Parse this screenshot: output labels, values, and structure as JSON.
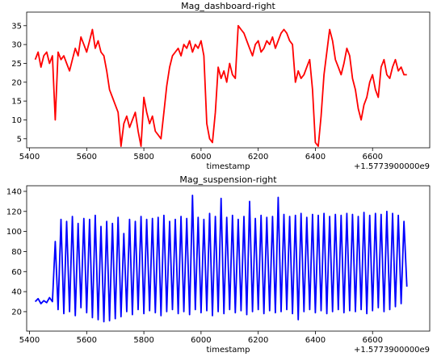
{
  "chart_data": [
    {
      "type": "line",
      "title": "Mag_dashboard-right",
      "xlabel": "timestamp",
      "offset_label": "+1.5773900000e9",
      "xlim": [
        5390,
        6800
      ],
      "xticks": [
        5400,
        5600,
        5800,
        6000,
        6200,
        6400,
        6600
      ],
      "ylim": [
        2.6,
        38.6
      ],
      "yticks": [
        5,
        10,
        15,
        20,
        25,
        30,
        35
      ],
      "x": [
        5420,
        5430,
        5440,
        5450,
        5460,
        5470,
        5480,
        5490,
        5500,
        5510,
        5520,
        5530,
        5540,
        5550,
        5560,
        5570,
        5580,
        5590,
        5600,
        5610,
        5620,
        5630,
        5640,
        5650,
        5660,
        5670,
        5680,
        5690,
        5700,
        5710,
        5720,
        5730,
        5740,
        5750,
        5760,
        5770,
        5780,
        5790,
        5800,
        5810,
        5820,
        5830,
        5840,
        5850,
        5860,
        5870,
        5880,
        5890,
        5900,
        5910,
        5920,
        5930,
        5940,
        5950,
        5960,
        5970,
        5980,
        5990,
        6000,
        6010,
        6020,
        6030,
        6040,
        6050,
        6060,
        6070,
        6080,
        6090,
        6100,
        6110,
        6120,
        6130,
        6140,
        6150,
        6160,
        6170,
        6180,
        6190,
        6200,
        6210,
        6220,
        6230,
        6240,
        6250,
        6260,
        6270,
        6280,
        6290,
        6300,
        6310,
        6320,
        6330,
        6340,
        6350,
        6360,
        6370,
        6380,
        6390,
        6400,
        6410,
        6420,
        6430,
        6440,
        6450,
        6460,
        6470,
        6480,
        6490,
        6500,
        6510,
        6520,
        6530,
        6540,
        6550,
        6560,
        6570,
        6580,
        6590,
        6600,
        6610,
        6620,
        6630,
        6640,
        6650,
        6660,
        6670,
        6680,
        6690,
        6700,
        6710,
        6720
      ],
      "series": [
        {
          "color": "#ff0000",
          "values": [
            26,
            28,
            24,
            27,
            28,
            25,
            27,
            10,
            28,
            26,
            27,
            25,
            23,
            26,
            29,
            27,
            32,
            30,
            28,
            31,
            34,
            29,
            31,
            28,
            27,
            23,
            18,
            16,
            14,
            12,
            3,
            9,
            11,
            8,
            10,
            12,
            7,
            3,
            16,
            12,
            9,
            11,
            7,
            6,
            5,
            12,
            19,
            24,
            27,
            28,
            29,
            27,
            30,
            29,
            31,
            28,
            30,
            29,
            31,
            27,
            9,
            5,
            4,
            12,
            24,
            21,
            23,
            20,
            25,
            22,
            21,
            35,
            34,
            33,
            31,
            29,
            27,
            30,
            31,
            28,
            29,
            31,
            30,
            32,
            29,
            31,
            33,
            34,
            33,
            31,
            30,
            20,
            23,
            21,
            22,
            24,
            26,
            18,
            4,
            3,
            11,
            22,
            28,
            34,
            31,
            26,
            24,
            22,
            25,
            29,
            27,
            21,
            18,
            13,
            10,
            14,
            16,
            20,
            22,
            18,
            16,
            24,
            26,
            22,
            21,
            24,
            26,
            23,
            24,
            22,
            22
          ]
        }
      ]
    },
    {
      "type": "line",
      "title": "Mag_suspension-right",
      "xlabel": "timestamp",
      "offset_label": "+1.5773900000e9",
      "xlim": [
        5390,
        6800
      ],
      "xticks": [
        5400,
        5600,
        5800,
        6000,
        6200,
        6400,
        6600
      ],
      "ylim": [
        0.6,
        145.6
      ],
      "yticks": [
        20,
        40,
        60,
        80,
        100,
        120,
        140
      ],
      "x": [
        5420,
        5430,
        5440,
        5450,
        5460,
        5470,
        5480,
        5490,
        5500,
        5510,
        5520,
        5530,
        5540,
        5550,
        5560,
        5570,
        5580,
        5590,
        5600,
        5610,
        5620,
        5630,
        5640,
        5650,
        5660,
        5670,
        5680,
        5690,
        5700,
        5710,
        5720,
        5730,
        5740,
        5750,
        5760,
        5770,
        5780,
        5790,
        5800,
        5810,
        5820,
        5830,
        5840,
        5850,
        5860,
        5870,
        5880,
        5890,
        5900,
        5910,
        5920,
        5930,
        5940,
        5950,
        5960,
        5970,
        5980,
        5990,
        6000,
        6010,
        6020,
        6030,
        6040,
        6050,
        6060,
        6070,
        6080,
        6090,
        6100,
        6110,
        6120,
        6130,
        6140,
        6150,
        6160,
        6170,
        6180,
        6190,
        6200,
        6210,
        6220,
        6230,
        6240,
        6250,
        6260,
        6270,
        6280,
        6290,
        6300,
        6310,
        6320,
        6330,
        6340,
        6350,
        6360,
        6370,
        6380,
        6390,
        6400,
        6410,
        6420,
        6430,
        6440,
        6450,
        6460,
        6470,
        6480,
        6490,
        6500,
        6510,
        6520,
        6530,
        6540,
        6550,
        6560,
        6570,
        6580,
        6590,
        6600,
        6610,
        6620,
        6630,
        6640,
        6650,
        6660,
        6670,
        6680,
        6690,
        6700,
        6710,
        6720
      ],
      "series": [
        {
          "color": "#0000ff",
          "values": [
            30,
            33,
            28,
            31,
            29,
            34,
            30,
            90,
            22,
            112,
            18,
            110,
            20,
            115,
            16,
            108,
            24,
            113,
            19,
            112,
            14,
            116,
            12,
            105,
            10,
            110,
            11,
            108,
            13,
            114,
            15,
            98,
            20,
            112,
            17,
            110,
            22,
            115,
            18,
            112,
            21,
            113,
            19,
            114,
            16,
            116,
            20,
            110,
            22,
            112,
            18,
            115,
            20,
            113,
            17,
            136,
            22,
            114,
            19,
            112,
            21,
            118,
            16,
            115,
            20,
            133,
            18,
            114,
            22,
            116,
            19,
            112,
            21,
            115,
            17,
            130,
            20,
            113,
            22,
            116,
            18,
            114,
            21,
            115,
            19,
            134,
            20,
            117,
            22,
            115,
            18,
            116,
            12,
            118,
            20,
            114,
            22,
            117,
            19,
            116,
            21,
            118,
            18,
            115,
            20,
            117,
            22,
            116,
            19,
            118,
            21,
            117,
            20,
            115,
            22,
            119,
            18,
            116,
            21,
            118,
            24,
            117,
            20,
            120,
            22,
            118,
            25,
            116,
            28,
            110,
            45
          ]
        }
      ]
    }
  ]
}
